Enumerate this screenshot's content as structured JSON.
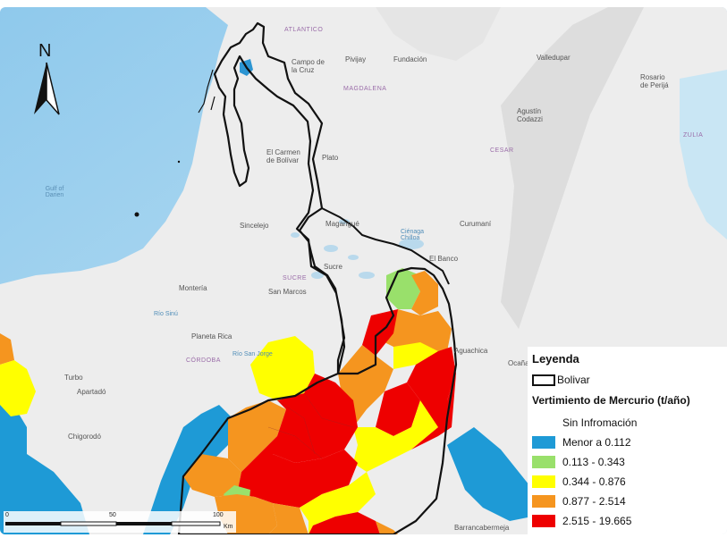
{
  "north_arrow": {
    "letter": "N"
  },
  "map_labels": [
    {
      "name": "label-atlantico",
      "text": "ATLANTICO",
      "cls": "dept"
    },
    {
      "name": "label-campo-de-la-cruz",
      "text": "Campo de\nla Cruz",
      "cls": ""
    },
    {
      "name": "label-pivijay",
      "text": "Pivijay",
      "cls": ""
    },
    {
      "name": "label-fundacion",
      "text": "Fundación",
      "cls": ""
    },
    {
      "name": "label-valledupar",
      "text": "Valledupar",
      "cls": ""
    },
    {
      "name": "label-rosario-de-perija",
      "text": "Rosario\nde Perijá",
      "cls": ""
    },
    {
      "name": "label-magdalena",
      "text": "MAGDALENA",
      "cls": "dept"
    },
    {
      "name": "label-agustin-codazzi",
      "text": "Agustín\nCodazzi",
      "cls": ""
    },
    {
      "name": "label-zulia",
      "text": "ZULIA",
      "cls": "dept"
    },
    {
      "name": "label-gulf-of-darien",
      "text": "Gulf of\nDarien",
      "cls": "sea"
    },
    {
      "name": "label-el-carmen-de-bolivar",
      "text": "El Carmen\nde Bolívar",
      "cls": ""
    },
    {
      "name": "label-plato",
      "text": "Plato",
      "cls": ""
    },
    {
      "name": "label-cesar",
      "text": "CESAR",
      "cls": "dept"
    },
    {
      "name": "label-sincelejo",
      "text": "Sincelejo",
      "cls": ""
    },
    {
      "name": "label-magangue",
      "text": "Magangué",
      "cls": ""
    },
    {
      "name": "label-cienaga-chilloa",
      "text": "Ciénaga\nChilloa",
      "cls": "water"
    },
    {
      "name": "label-curumani",
      "text": "Curumaní",
      "cls": ""
    },
    {
      "name": "label-el-banco",
      "text": "El Banco",
      "cls": ""
    },
    {
      "name": "label-sucre-town",
      "text": "Sucre",
      "cls": ""
    },
    {
      "name": "label-sucre-dept",
      "text": "SUCRE",
      "cls": "dept"
    },
    {
      "name": "label-monteria",
      "text": "Montería",
      "cls": ""
    },
    {
      "name": "label-san-marcos",
      "text": "San Marcos",
      "cls": ""
    },
    {
      "name": "label-rio-sinu",
      "text": "Río Sinú",
      "cls": "water"
    },
    {
      "name": "label-planeta-rica",
      "text": "Planeta Rica",
      "cls": ""
    },
    {
      "name": "label-cordoba",
      "text": "CÓRDOBA",
      "cls": "dept"
    },
    {
      "name": "label-rio-san-jorge",
      "text": "Río San Jorge",
      "cls": "water"
    },
    {
      "name": "label-turbo",
      "text": "Turbo",
      "cls": ""
    },
    {
      "name": "label-apartado",
      "text": "Apartadó",
      "cls": ""
    },
    {
      "name": "label-chigorodo",
      "text": "Chigorodó",
      "cls": ""
    },
    {
      "name": "label-aguachica",
      "text": "Aguachica",
      "cls": ""
    },
    {
      "name": "label-ocana",
      "text": "Ocaña",
      "cls": ""
    },
    {
      "name": "label-barrancabermeja",
      "text": "Barrancabermeja",
      "cls": ""
    }
  ],
  "scale": {
    "ticks": [
      "0",
      "50",
      "100"
    ],
    "unit": "Km"
  },
  "legend": {
    "title": "Leyenda",
    "boundary_label": "Bolivar",
    "subtitle": "Vertimiento de Mercurio (t/año)",
    "items": [
      {
        "label": "Sin Infromación",
        "color": "#ffffff"
      },
      {
        "label": "Menor a 0.112",
        "color": "#1e9ad6"
      },
      {
        "label": "0.113 - 0.343",
        "color": "#99e06b"
      },
      {
        "label": "0.344 - 0.876",
        "color": "#ffff00"
      },
      {
        "label": "0.877 - 2.514",
        "color": "#f5951f"
      },
      {
        "label": "2.515 - 19.665",
        "color": "#ee0000"
      }
    ]
  },
  "colors": {
    "sea": "#bfe0f2",
    "land": "#eceded",
    "relief": "#dcdcdc",
    "boundary": "#111111"
  }
}
